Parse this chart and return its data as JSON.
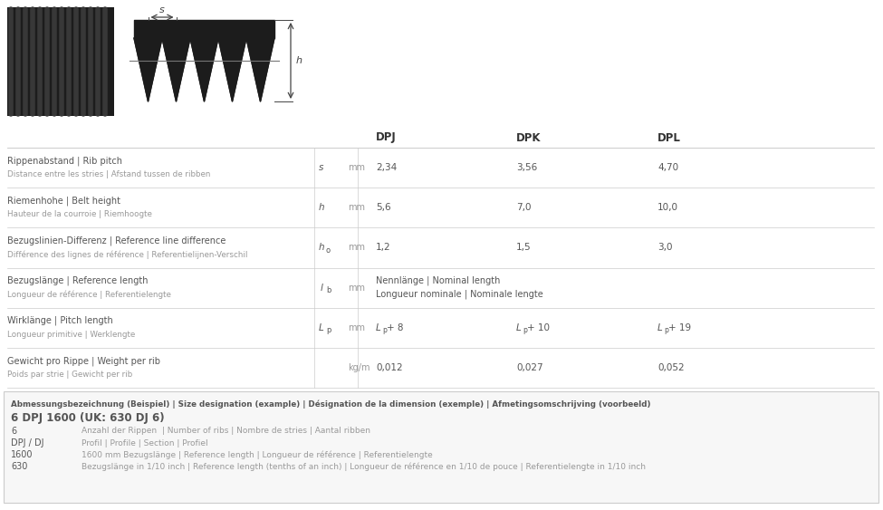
{
  "bg_color": "#ffffff",
  "text_color": "#999999",
  "dark_text": "#555555",
  "bold_text": "#333333",
  "col_headers": [
    "DPJ",
    "DPK",
    "DPL"
  ],
  "rows": [
    {
      "label_line1": "Rippenabstand | Rib pitch",
      "label_line2": "Distance entre les stries | Afstand tussen de ribben",
      "symbol": "s",
      "symbol_sub": "",
      "unit": "mm",
      "values": [
        "2,34",
        "3,56",
        "4,70"
      ],
      "span": false
    },
    {
      "label_line1": "Riemenhohe | Belt height",
      "label_line2": "Hauteur de la courroie | Riemhoogte",
      "symbol": "h",
      "symbol_sub": "",
      "unit": "mm",
      "values": [
        "5,6",
        "7,0",
        "10,0"
      ],
      "span": false
    },
    {
      "label_line1": "Bezugslinien-Differenz | Reference line difference",
      "label_line2": "Différence des lignes de référence | Referentielijnen-Verschil",
      "symbol": "h",
      "symbol_sub": "o",
      "unit": "mm",
      "values": [
        "1,2",
        "1,5",
        "3,0"
      ],
      "span": false
    },
    {
      "label_line1": "Bezugslänge | Reference length",
      "label_line2": "Longueur de référence | Referentielengte",
      "symbol": "l",
      "symbol_sub": "b",
      "unit": "mm",
      "values": [
        "Nennlänge | Nominal length",
        "Longueur nominale | Nominale lengte",
        ""
      ],
      "span": true
    },
    {
      "label_line1": "Wirklänge | Pitch length",
      "label_line2": "Longueur primitive | Werklengte",
      "symbol": "L",
      "symbol_sub": "p",
      "unit": "mm",
      "values": [
        "L  + 8",
        "L  + 10",
        "L  + 19"
      ],
      "val_prefix": "L",
      "val_sub": "p",
      "span": false
    },
    {
      "label_line1": "Gewicht pro Rippe | Weight per rib",
      "label_line2": "Poids par strie | Gewicht per rib",
      "symbol": "",
      "symbol_sub": "",
      "unit": "kg/m",
      "values": [
        "0,012",
        "0,027",
        "0,052"
      ],
      "span": false
    }
  ],
  "bottom_box": {
    "title_line1": "Abmessungsbezeichnung (Beispiel) | Size designation (example) | Désignation de la dimension (exemple) | Afmetingsomschrijving (voorbeeld)",
    "title_line2": "6 DPJ 1600 (UK: 630 DJ 6)",
    "items": [
      [
        "6",
        "Anzahl der Rippen  | Number of ribs | Nombre de stries | Aantal ribben"
      ],
      [
        "DPJ / DJ",
        "Profil | Profile | Section | Profiel"
      ],
      [
        "1600",
        "1600 mm Bezugslänge | Reference length | Longueur de référence | Referentielengte"
      ],
      [
        "630",
        "Bezugslänge in 1/10 inch | Reference length (tenths of an inch) | Longueur de référence en 1/10 de pouce | Referentielengte in 1/10 inch"
      ]
    ]
  }
}
